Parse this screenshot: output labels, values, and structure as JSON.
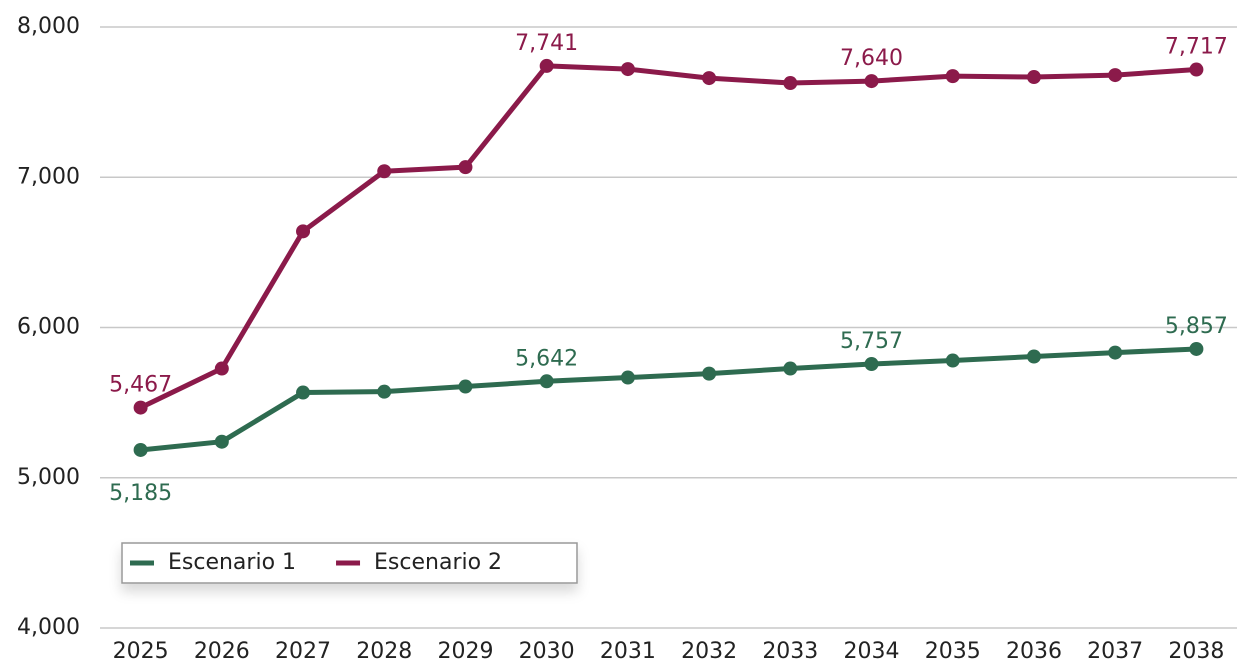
{
  "chart_data": {
    "type": "line",
    "categories": [
      "2025",
      "2026",
      "2027",
      "2028",
      "2029",
      "2030",
      "2031",
      "2032",
      "2033",
      "2034",
      "2035",
      "2036",
      "2037",
      "2038"
    ],
    "series": [
      {
        "name": "Escenario 1",
        "color": "#2e6b50",
        "values": [
          5185,
          5240,
          5567,
          5573,
          5607,
          5642,
          5667,
          5693,
          5727,
          5757,
          5780,
          5807,
          5833,
          5857
        ],
        "value_labels": [
          "5,185",
          null,
          null,
          null,
          null,
          "5,642",
          null,
          null,
          null,
          "5,757",
          null,
          null,
          null,
          "5,857"
        ]
      },
      {
        "name": "Escenario 2",
        "color": "#8b1a4a",
        "values": [
          5467,
          5727,
          6640,
          7040,
          7067,
          7741,
          7720,
          7660,
          7627,
          7640,
          7673,
          7667,
          7680,
          7717
        ],
        "value_labels": [
          "5,467",
          null,
          null,
          null,
          null,
          "7,741",
          null,
          null,
          null,
          "7,640",
          null,
          null,
          null,
          "7,717"
        ]
      }
    ],
    "ylim": [
      4000,
      8000
    ],
    "yticks": [
      {
        "value": 4000,
        "label": "4,000"
      },
      {
        "value": 5000,
        "label": "5,000"
      },
      {
        "value": 6000,
        "label": "6,000"
      },
      {
        "value": 7000,
        "label": "7,000"
      },
      {
        "value": 8000,
        "label": "8,000"
      }
    ],
    "grid": true,
    "legend": "lower left"
  }
}
